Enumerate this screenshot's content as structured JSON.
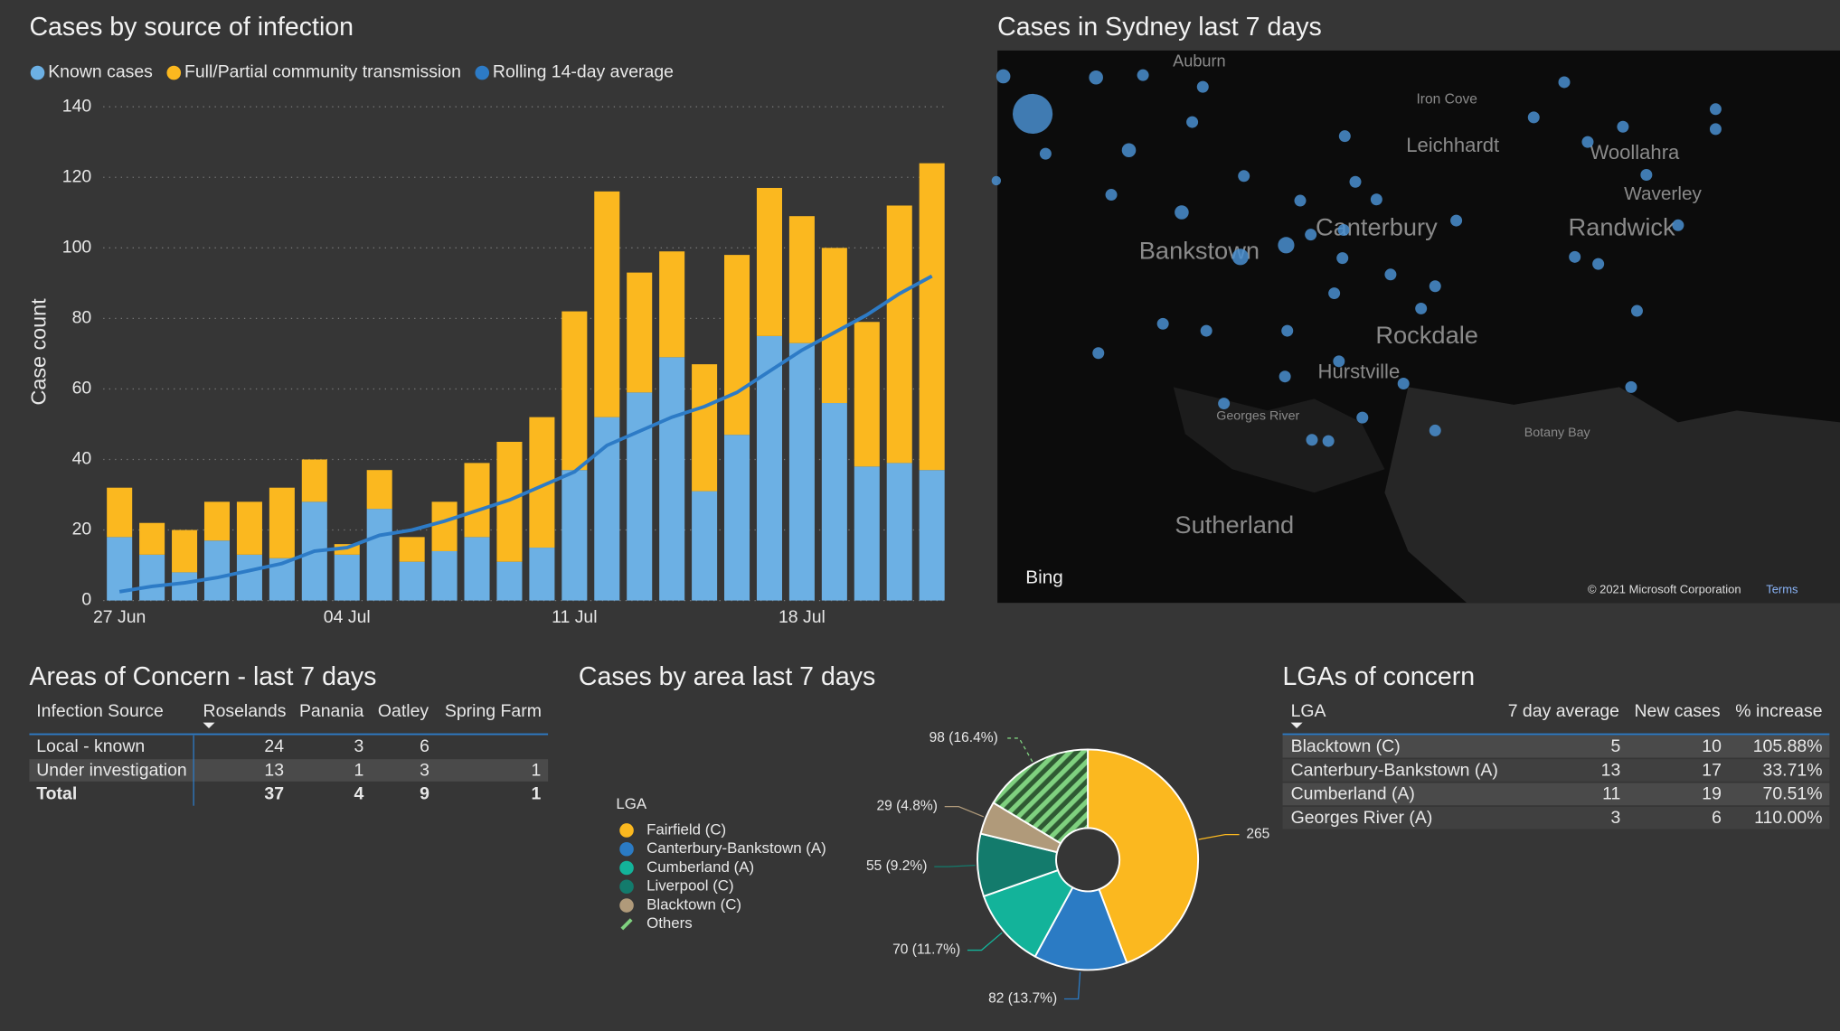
{
  "chart_data": [
    {
      "type": "bar",
      "stacked": true,
      "title": "Cases by source of infection",
      "y_label": "Case count",
      "categories": [
        "27 Jun",
        null,
        null,
        null,
        null,
        null,
        null,
        "04 Jul",
        null,
        null,
        null,
        null,
        null,
        null,
        "11 Jul",
        null,
        null,
        null,
        null,
        null,
        null,
        "18 Jul",
        null,
        null,
        null,
        null
      ],
      "series": [
        {
          "name": "Known cases",
          "color": "#6cb0e4",
          "values": [
            18,
            13,
            8,
            17,
            13,
            12,
            28,
            13,
            26,
            11,
            14,
            18,
            11,
            15,
            37,
            52,
            59,
            69,
            31,
            47,
            75,
            73,
            56,
            38,
            39,
            37
          ]
        },
        {
          "name": "Full/Partial community transmission",
          "color": "#fbb81f",
          "values": [
            14,
            9,
            12,
            11,
            15,
            20,
            12,
            3,
            11,
            7,
            14,
            21,
            34,
            37,
            45,
            64,
            34,
            30,
            36,
            51,
            42,
            36,
            44,
            41,
            73,
            87
          ]
        },
        {
          "name": "Rolling 14-day average",
          "color": "#2d7bc6",
          "type": "line",
          "values": [
            2.5,
            4,
            5,
            6.5,
            8.5,
            10.5,
            14,
            15,
            18.5,
            20,
            22.5,
            25.5,
            28.5,
            32.5,
            36.5,
            44,
            48,
            52,
            55,
            59,
            65,
            71,
            76,
            81,
            87,
            92
          ]
        }
      ],
      "ylim": [
        0,
        140
      ],
      "yticks": [
        0,
        20,
        40,
        60,
        80,
        100,
        120,
        140
      ],
      "grid": true
    },
    {
      "type": "pie",
      "donut": true,
      "title": "Cases by area last 7 days",
      "legend_title": "LGA",
      "categories": [
        "Fairfield (C)",
        "Canterbury-Bankstown (A)",
        "Cumberland (A)",
        "Liverpool (C)",
        "Blacktown (C)",
        "Others"
      ],
      "values": [
        265,
        82,
        70,
        55,
        29,
        98
      ],
      "value_labels": [
        "265",
        "82 (13.7%)",
        "70 (11.7%)",
        "55 (9.2%)",
        "29 (4.8%)",
        "98 (16.4%)"
      ],
      "colors": [
        "#fbb81f",
        "#2b7bc4",
        "#13b39a",
        "#137b6c",
        "#b09a7a",
        "#7fd17f"
      ]
    }
  ],
  "map": {
    "title": "Cases in Sydney last 7 days",
    "places": [
      "Auburn",
      "Iron Cove",
      "Leichhardt",
      "Woollahra",
      "Waverley",
      "Bankstown",
      "Canterbury",
      "Randwick",
      "Rockdale",
      "Hurstville",
      "Georges River",
      "Botany Bay",
      "Sutherland"
    ],
    "logo": "Bing",
    "copyright": "© 2021 Microsoft Corporation",
    "terms": "Terms"
  },
  "tables": [
    {
      "title": "Areas of Concern - last 7 days",
      "header": [
        "Infection Source",
        "Roselands",
        "Panania",
        "Oatley",
        "Spring Farm"
      ],
      "rows": [
        [
          "Local - known",
          24,
          3,
          6,
          null
        ],
        [
          "Under investigation",
          13,
          1,
          3,
          1
        ],
        [
          "Total",
          37,
          4,
          9,
          1
        ]
      ]
    },
    {
      "title": "LGAs of concern",
      "header": [
        "LGA",
        "7 day average",
        "New cases",
        "% increase"
      ],
      "rows": [
        [
          "Blacktown (C)",
          5,
          10,
          "105.88%"
        ],
        [
          "Canterbury-Bankstown (A)",
          13,
          17,
          "33.71%"
        ],
        [
          "Cumberland (A)",
          11,
          19,
          "70.51%"
        ],
        [
          "Georges River (A)",
          3,
          6,
          "110.00%"
        ]
      ]
    }
  ]
}
